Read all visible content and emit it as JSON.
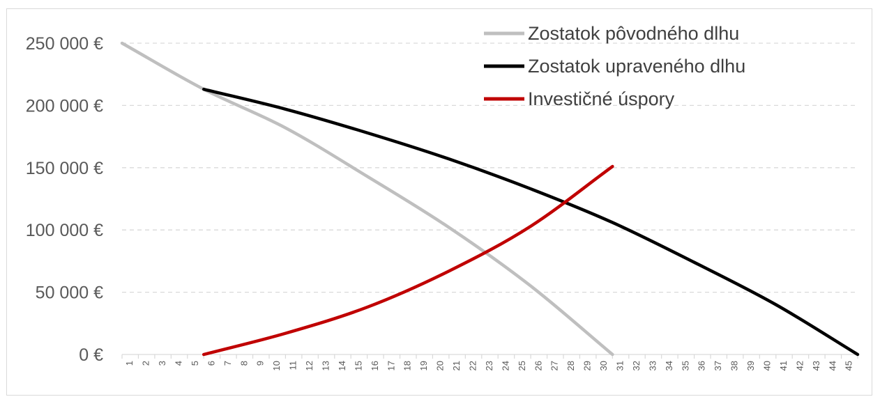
{
  "chart_data": {
    "type": "line",
    "title": "",
    "xlabel": "",
    "ylabel": "",
    "x": [
      1,
      2,
      3,
      4,
      5,
      6,
      7,
      8,
      9,
      10,
      11,
      12,
      13,
      14,
      15,
      16,
      17,
      18,
      19,
      20,
      21,
      22,
      23,
      24,
      25,
      26,
      27,
      28,
      29,
      30,
      31,
      32,
      33,
      34,
      35,
      36,
      37,
      38,
      39,
      40,
      41,
      42,
      43,
      44,
      45
    ],
    "xlim": [
      0,
      45
    ],
    "ylim": [
      0,
      250000
    ],
    "yticks": [
      0,
      50000,
      100000,
      150000,
      200000,
      250000
    ],
    "ytick_labels": [
      "0 €",
      "50 000 €",
      "100 000 €",
      "150 000 €",
      "200 000 €",
      "250 000 €"
    ],
    "xtick_labels": [
      "1",
      "2",
      "3",
      "4",
      "5",
      "6",
      "7",
      "8",
      "9",
      "10",
      "11",
      "12",
      "13",
      "14",
      "15",
      "16",
      "17",
      "18",
      "19",
      "20",
      "21",
      "22",
      "23",
      "24",
      "25",
      "26",
      "27",
      "28",
      "29",
      "30",
      "31",
      "32",
      "33",
      "34",
      "35",
      "36",
      "37",
      "38",
      "39",
      "40",
      "41",
      "42",
      "43",
      "44",
      "45"
    ],
    "grid": "horizontal-dashed",
    "legend": "top-right",
    "series": [
      {
        "name": "Zostatok pôvodného dlhu",
        "color": "#bfbfbf",
        "x": [
          0,
          5,
          10,
          15,
          20,
          25,
          30
        ],
        "y": [
          250000,
          213000,
          182000,
          143000,
          102000,
          55000,
          0
        ]
      },
      {
        "name": "Zostatok upraveného dlhu",
        "color": "#000000",
        "x": [
          5,
          10,
          15,
          20,
          25,
          30,
          35,
          40,
          45
        ],
        "y": [
          213000,
          197000,
          178000,
          157000,
          133000,
          106000,
          74000,
          40000,
          0
        ]
      },
      {
        "name": "Investičné úspory",
        "color": "#c00000",
        "x": [
          5,
          10,
          15,
          20,
          25,
          30
        ],
        "y": [
          0,
          17000,
          38000,
          67000,
          103000,
          151000
        ]
      }
    ]
  }
}
